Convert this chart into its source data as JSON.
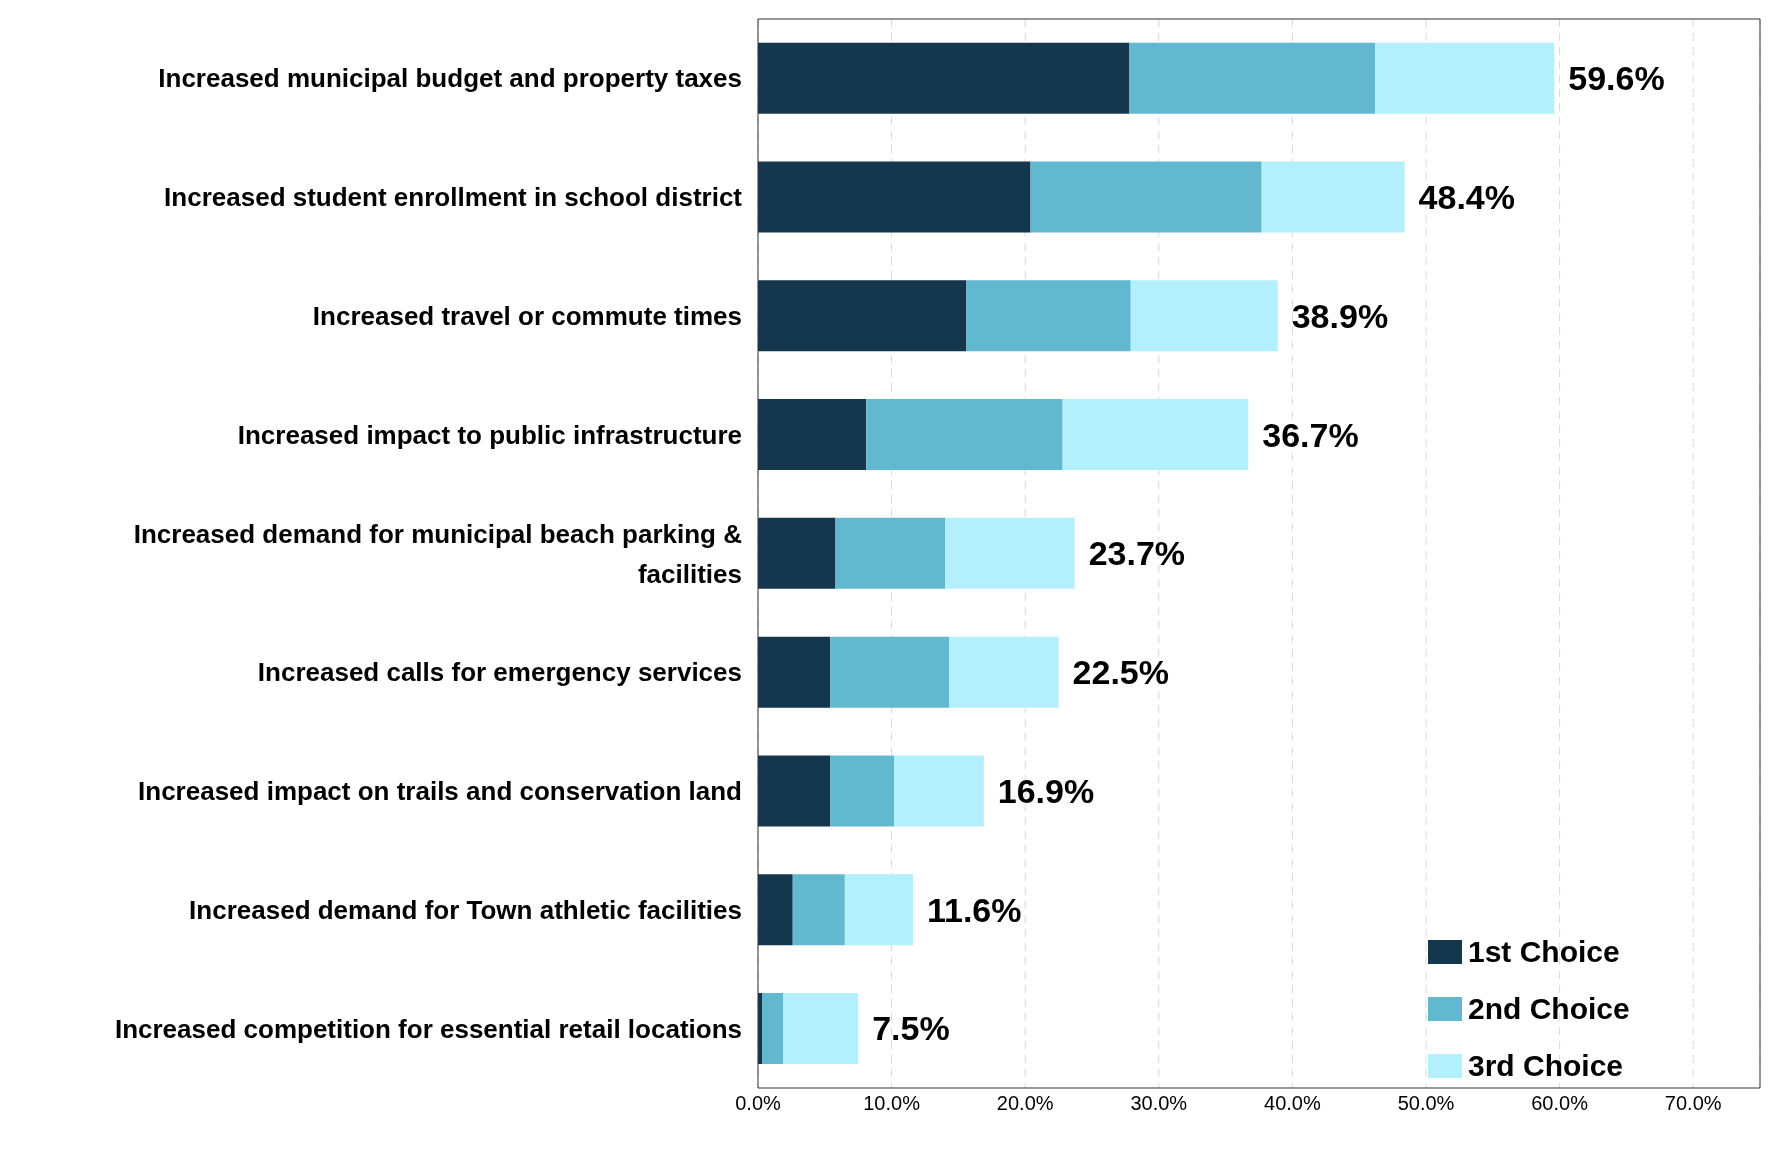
{
  "chart_data": {
    "type": "bar",
    "orientation": "horizontal",
    "stacked": true,
    "categories": [
      "Increased municipal budget and property taxes",
      "Increased student enrollment in school district",
      "Increased travel or commute times",
      "Increased impact to public infrastructure",
      "Increased demand for municipal beach parking & facilities",
      "Increased calls for emergency services",
      "Increased impact on trails and conservation land",
      "Increased demand for Town athletic facilities",
      "Increased competition for essential retail locations"
    ],
    "series": [
      {
        "name": "1st Choice",
        "color": "#15374d",
        "values": [
          27.8,
          20.4,
          15.6,
          8.1,
          5.8,
          5.4,
          5.4,
          2.6,
          0.3
        ]
      },
      {
        "name": "2nd Choice",
        "color": "#62b8cf",
        "values": [
          18.4,
          17.3,
          12.3,
          14.7,
          8.2,
          8.9,
          4.8,
          3.9,
          1.6
        ]
      },
      {
        "name": "3rd Choice",
        "color": "#b3effc",
        "values": [
          13.4,
          10.7,
          11.0,
          13.9,
          9.7,
          8.2,
          6.7,
          5.1,
          5.6
        ]
      }
    ],
    "totals": [
      "59.6%",
      "48.4%",
      "38.9%",
      "36.7%",
      "23.7%",
      "22.5%",
      "16.9%",
      "11.6%",
      "7.5%"
    ],
    "xlim": [
      0,
      75
    ],
    "xticks": [
      {
        "value": 0,
        "label": "0.0%"
      },
      {
        "value": 10,
        "label": "10.0%"
      },
      {
        "value": 20,
        "label": "20.0%"
      },
      {
        "value": 30,
        "label": "30.0%"
      },
      {
        "value": 40,
        "label": "40.0%"
      },
      {
        "value": 50,
        "label": "50.0%"
      },
      {
        "value": 60,
        "label": "60.0%"
      },
      {
        "value": 70,
        "label": "70.0%"
      }
    ],
    "grid": "x",
    "legend": "bottom right"
  }
}
